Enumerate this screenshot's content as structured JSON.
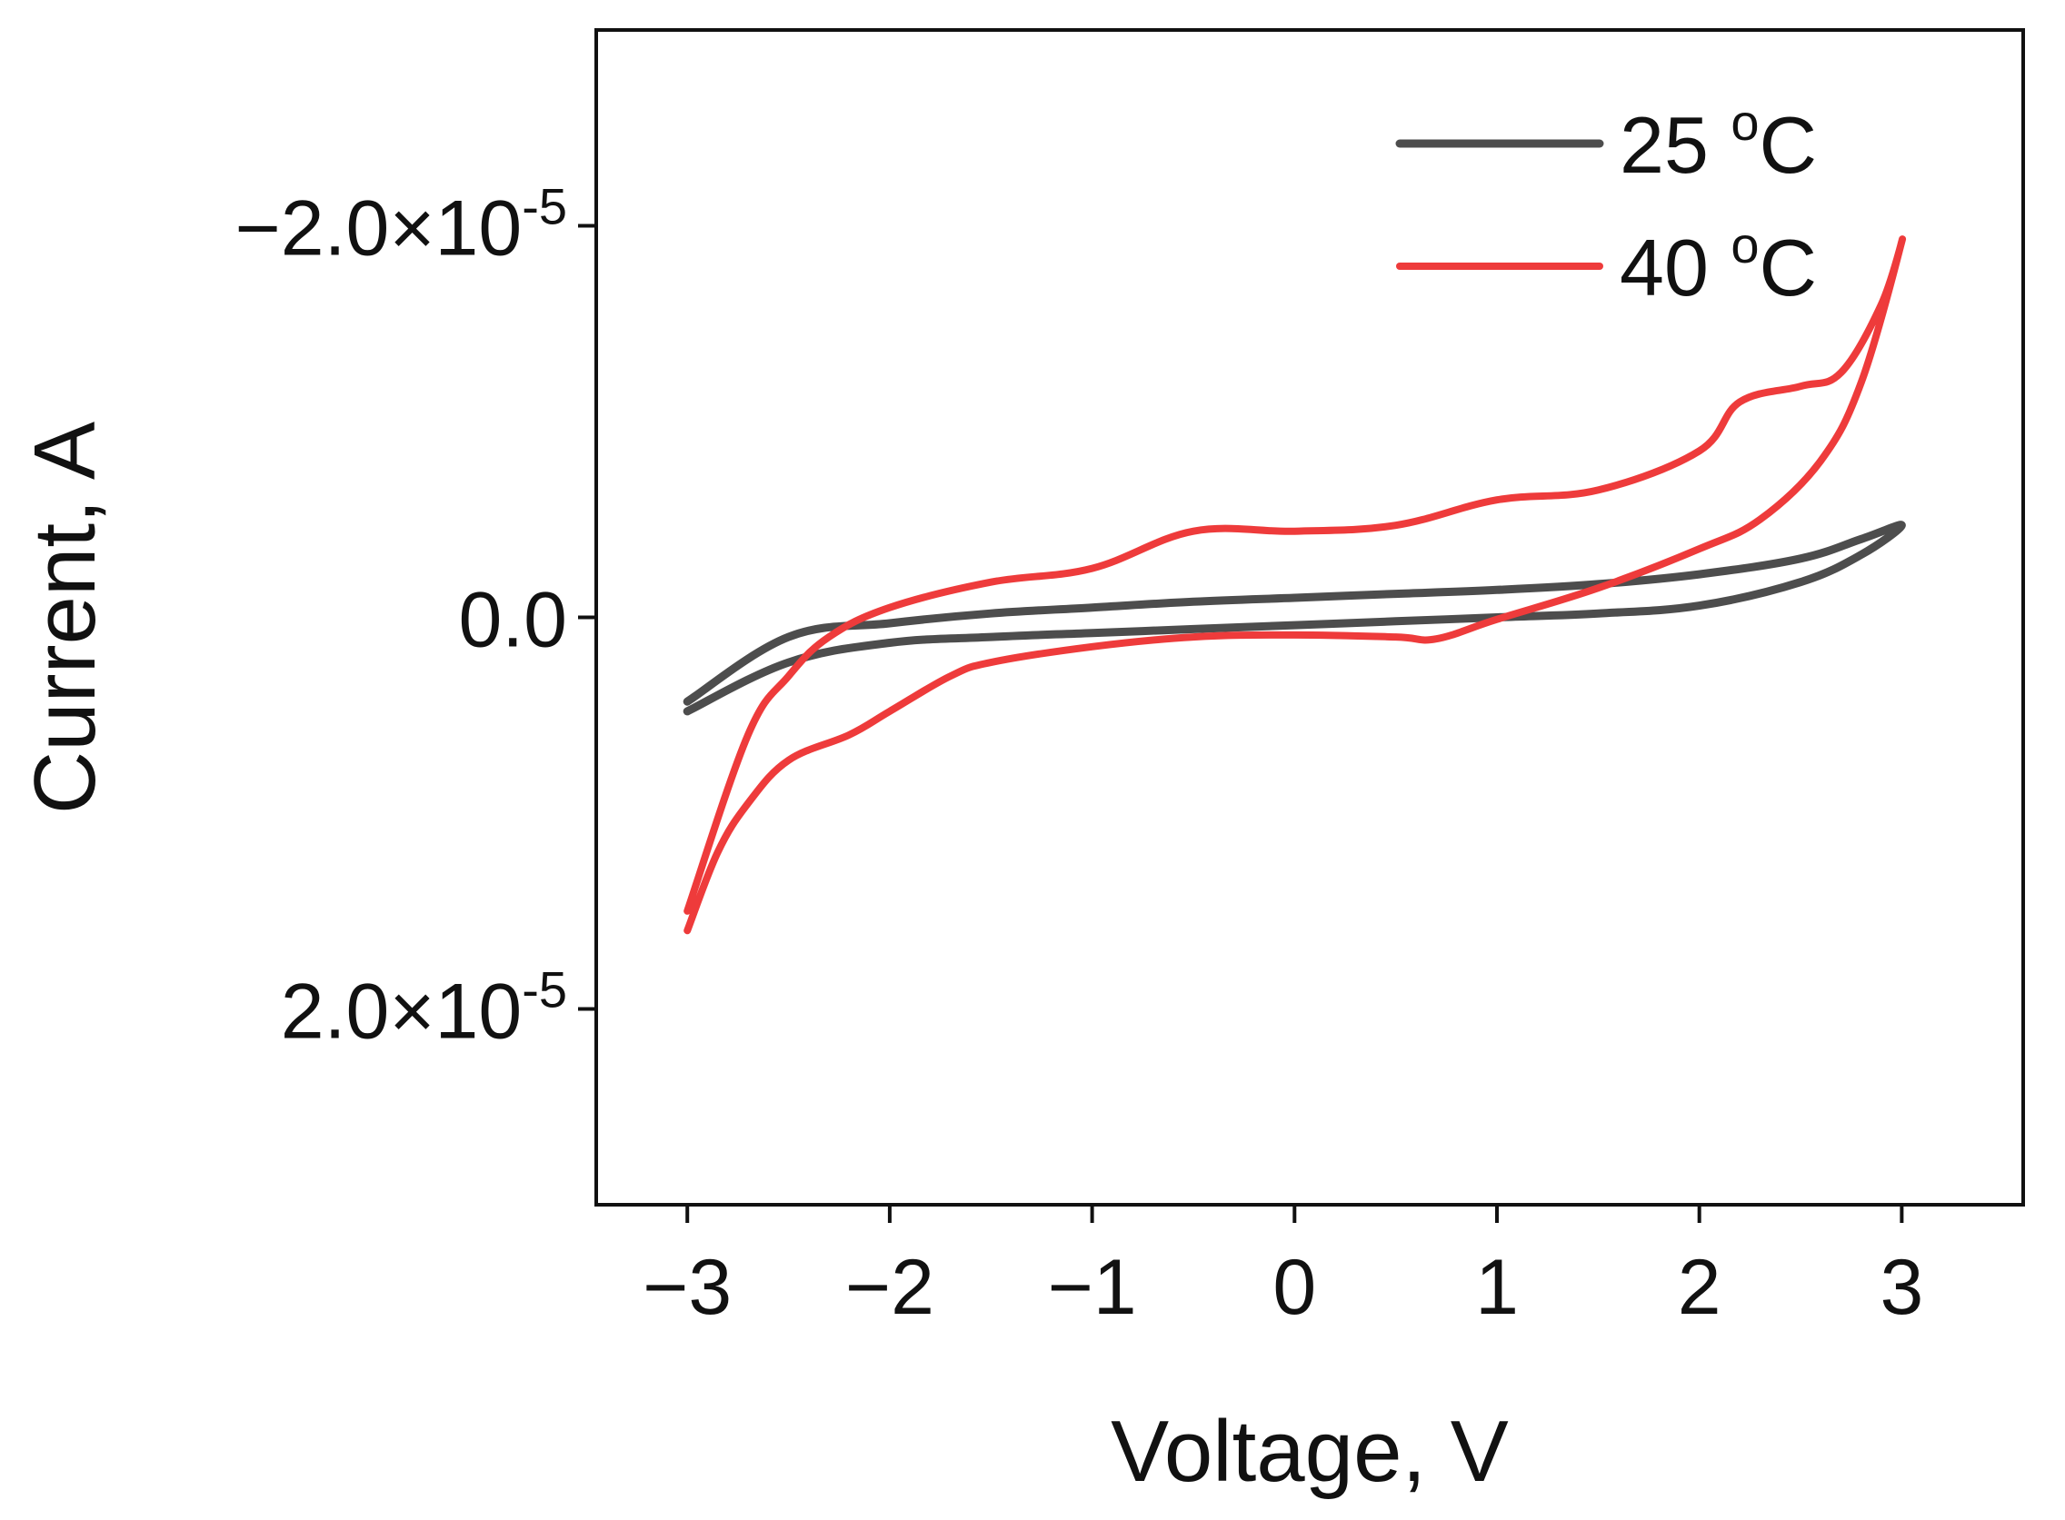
{
  "chart_data": {
    "type": "line",
    "title": "",
    "xlabel": "Voltage, V",
    "ylabel": "Current, A",
    "xlim": [
      -3.45,
      3.6
    ],
    "ylim": [
      -3e-05,
      3e-05
    ],
    "y_inverted": true,
    "grid": false,
    "legend_position": "top-right",
    "x_ticks": [
      {
        "value": -3,
        "label": "−3"
      },
      {
        "value": -2,
        "label": "−2"
      },
      {
        "value": -1,
        "label": "−1"
      },
      {
        "value": 0,
        "label": "0"
      },
      {
        "value": 1,
        "label": "1"
      },
      {
        "value": 2,
        "label": "2"
      },
      {
        "value": 3,
        "label": "3"
      }
    ],
    "y_ticks": [
      {
        "value": -2e-05,
        "mantissa": "−2.0×10",
        "exponent": "-5"
      },
      {
        "value": 0,
        "mantissa": "0.0",
        "exponent": ""
      },
      {
        "value": 2e-05,
        "mantissa": "2.0×10",
        "exponent": "-5"
      }
    ],
    "series": [
      {
        "name": "25 °C",
        "legend_value": "25",
        "legend_unit": "C",
        "legend_degree": "o",
        "color": "#4d4d4d",
        "x": [
          -3.0,
          -2.5,
          -2.0,
          -1.5,
          -1.0,
          -0.5,
          0.0,
          0.5,
          1.0,
          1.5,
          2.0,
          2.5,
          2.8,
          3.0,
          2.8,
          2.5,
          2.0,
          1.5,
          1.0,
          0.5,
          0.0,
          -0.5,
          -1.0,
          -1.5,
          -2.0,
          -2.5,
          -3.0
        ],
        "y": [
          4.8e-06,
          2.3e-06,
          1.3e-06,
          1e-06,
          8e-07,
          6e-07,
          4e-07,
          2e-07,
          0.0,
          -2e-07,
          -6e-07,
          -1.8e-06,
          -3.2e-06,
          -4.7e-06,
          -4e-06,
          -3e-06,
          -2.2e-06,
          -1.7e-06,
          -1.4e-06,
          -1.2e-06,
          -1e-06,
          -8e-07,
          -5e-07,
          -2e-07,
          3e-07,
          1e-06,
          4.3e-06
        ]
      },
      {
        "name": "40 °C",
        "legend_value": "40",
        "legend_unit": "C",
        "legend_degree": "o",
        "color": "#ee3b3b",
        "x": [
          -3.0,
          -2.85,
          -2.7,
          -2.5,
          -2.2,
          -2.0,
          -1.7,
          -1.5,
          -1.0,
          -0.5,
          0.0,
          0.5,
          0.7,
          1.0,
          1.5,
          2.0,
          2.3,
          2.6,
          2.8,
          3.0,
          2.9,
          2.7,
          2.5,
          2.2,
          2.0,
          1.5,
          1.0,
          0.5,
          0.0,
          -0.5,
          -1.0,
          -1.5,
          -2.0,
          -2.3,
          -2.5,
          -2.7,
          -3.0
        ],
        "y": [
          1.6e-05,
          1.2e-05,
          9.5e-06,
          7.3e-06,
          6e-06,
          4.8e-06,
          3e-06,
          2.3e-06,
          1.5e-06,
          1e-06,
          9e-07,
          1e-06,
          1.1e-06,
          1e-07,
          -1.5e-06,
          -3.5e-06,
          -5e-06,
          -8e-06,
          -1.2e-05,
          -1.92e-05,
          -1.6e-05,
          -1.25e-05,
          -1.18e-05,
          -1.1e-05,
          -8.5e-06,
          -6.5e-06,
          -6e-06,
          -4.7e-06,
          -4.4e-06,
          -4.4e-06,
          -2.5e-06,
          -1.8e-06,
          -5e-07,
          1e-06,
          3e-06,
          6e-06,
          1.5e-05
        ]
      }
    ]
  }
}
